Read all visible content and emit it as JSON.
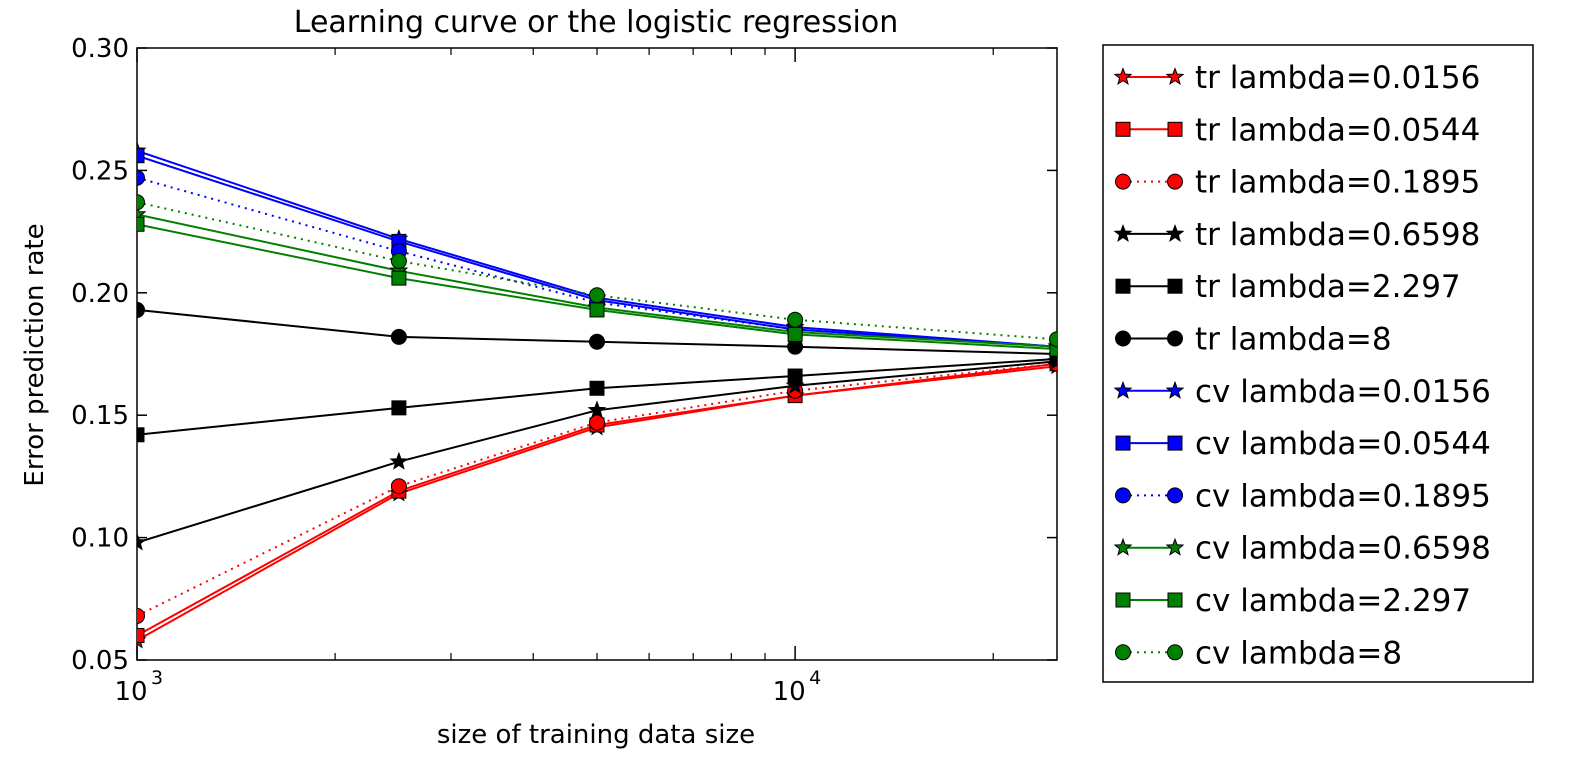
{
  "chart_data": {
    "type": "line",
    "title": "Learning curve or the logistic regression",
    "xlabel": "size of training data size",
    "ylabel": "Error prediction rate",
    "xscale": "log",
    "xlim": [
      1000,
      25000
    ],
    "ylim": [
      0.05,
      0.3
    ],
    "x": [
      1000,
      2500,
      5000,
      10000,
      25000
    ],
    "x_ticks": [
      {
        "value": 1000,
        "base": "10",
        "exp": "3"
      },
      {
        "value": 10000,
        "base": "10",
        "exp": "4"
      }
    ],
    "y_ticks": [
      {
        "value": 0.05,
        "label": "0.05"
      },
      {
        "value": 0.1,
        "label": "0.10"
      },
      {
        "value": 0.15,
        "label": "0.15"
      },
      {
        "value": 0.2,
        "label": "0.20"
      },
      {
        "value": 0.25,
        "label": "0.25"
      },
      {
        "value": 0.3,
        "label": "0.30"
      }
    ],
    "grid": false,
    "legend_position": "outside-right",
    "series": [
      {
        "name": "tr lambda=0.0156",
        "color": "#ff0000",
        "marker": "star",
        "linestyle": "solid",
        "values": [
          0.058,
          0.118,
          0.145,
          0.158,
          0.17
        ]
      },
      {
        "name": "tr lambda=0.0544",
        "color": "#ff0000",
        "marker": "square",
        "linestyle": "solid",
        "values": [
          0.06,
          0.119,
          0.146,
          0.158,
          0.171
        ]
      },
      {
        "name": "tr lambda=0.1895",
        "color": "#ff0000",
        "marker": "circle",
        "linestyle": "dotted",
        "values": [
          0.068,
          0.121,
          0.147,
          0.16,
          0.171
        ]
      },
      {
        "name": "tr lambda=0.6598",
        "color": "#000000",
        "marker": "star",
        "linestyle": "solid",
        "values": [
          0.098,
          0.131,
          0.152,
          0.162,
          0.172
        ]
      },
      {
        "name": "tr lambda=2.297",
        "color": "#000000",
        "marker": "square",
        "linestyle": "solid",
        "values": [
          0.142,
          0.153,
          0.161,
          0.166,
          0.173
        ]
      },
      {
        "name": "tr lambda=8",
        "color": "#000000",
        "marker": "circle",
        "linestyle": "solid",
        "values": [
          0.193,
          0.182,
          0.18,
          0.178,
          0.175
        ]
      },
      {
        "name": "cv lambda=0.0156",
        "color": "#0000ff",
        "marker": "star",
        "linestyle": "solid",
        "values": [
          0.258,
          0.222,
          0.198,
          0.186,
          0.178
        ]
      },
      {
        "name": "cv lambda=0.0544",
        "color": "#0000ff",
        "marker": "square",
        "linestyle": "solid",
        "values": [
          0.256,
          0.221,
          0.197,
          0.185,
          0.178
        ]
      },
      {
        "name": "cv lambda=0.1895",
        "color": "#0000ff",
        "marker": "circle",
        "linestyle": "dotted",
        "values": [
          0.247,
          0.217,
          0.196,
          0.185,
          0.178
        ]
      },
      {
        "name": "cv lambda=0.6598",
        "color": "#008000",
        "marker": "star",
        "linestyle": "solid",
        "values": [
          0.232,
          0.209,
          0.194,
          0.184,
          0.178
        ]
      },
      {
        "name": "cv lambda=2.297",
        "color": "#008000",
        "marker": "square",
        "linestyle": "solid",
        "values": [
          0.228,
          0.206,
          0.193,
          0.183,
          0.177
        ]
      },
      {
        "name": "cv lambda=8",
        "color": "#008000",
        "marker": "circle",
        "linestyle": "dotted",
        "values": [
          0.237,
          0.213,
          0.199,
          0.189,
          0.181
        ]
      }
    ]
  }
}
